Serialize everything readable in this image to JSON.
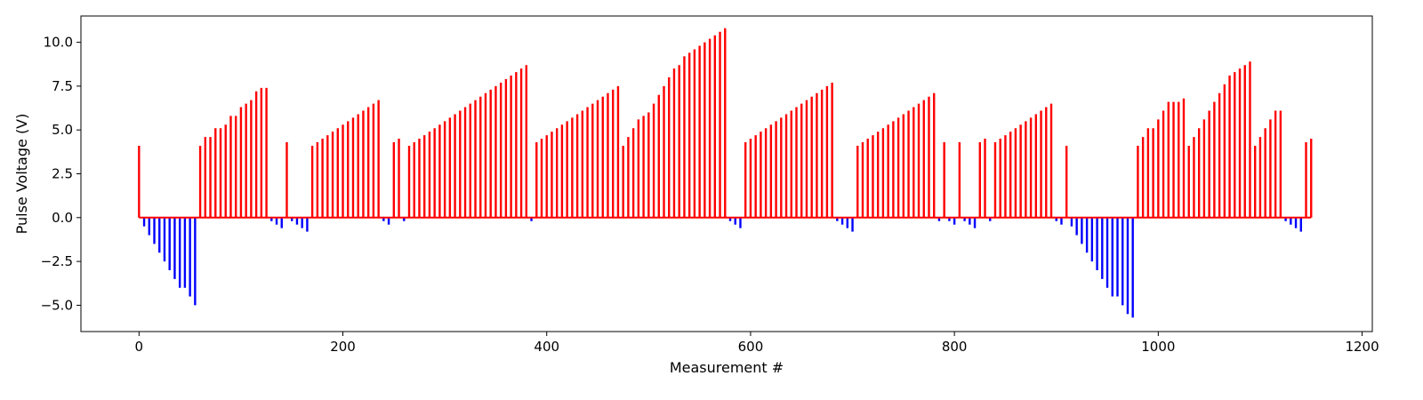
{
  "chart_data": {
    "type": "bar",
    "style": "stem",
    "xlabel": "Measurement #",
    "ylabel": "Pulse Voltage (V)",
    "xlim": [
      -57,
      1210
    ],
    "ylim": [
      -6.5,
      11.5
    ],
    "xticks": [
      0,
      200,
      400,
      600,
      800,
      1000,
      1200
    ],
    "yticks": [
      -5.0,
      -2.5,
      0.0,
      2.5,
      5.0,
      7.5,
      10.0
    ],
    "grid": false,
    "colors": {
      "positive": "#ff0000",
      "negative": "#0000ff"
    },
    "baseline": [
      0,
      1150
    ],
    "points": [
      [
        0,
        4.1
      ],
      [
        5,
        -0.5
      ],
      [
        10,
        -1.0
      ],
      [
        15,
        -1.5
      ],
      [
        20,
        -2.0
      ],
      [
        25,
        -2.5
      ],
      [
        30,
        -3.0
      ],
      [
        35,
        -3.5
      ],
      [
        40,
        -4.0
      ],
      [
        45,
        -4.0
      ],
      [
        50,
        -4.5
      ],
      [
        55,
        -5.0
      ],
      [
        60,
        4.1
      ],
      [
        65,
        4.6
      ],
      [
        70,
        4.6
      ],
      [
        75,
        5.1
      ],
      [
        80,
        5.1
      ],
      [
        85,
        5.3
      ],
      [
        90,
        5.8
      ],
      [
        95,
        5.8
      ],
      [
        100,
        6.3
      ],
      [
        105,
        6.5
      ],
      [
        110,
        6.7
      ],
      [
        115,
        7.2
      ],
      [
        120,
        7.4
      ],
      [
        125,
        7.4
      ],
      [
        130,
        -0.2
      ],
      [
        135,
        -0.4
      ],
      [
        140,
        -0.6
      ],
      [
        145,
        4.3
      ],
      [
        150,
        -0.2
      ],
      [
        155,
        -0.4
      ],
      [
        160,
        -0.6
      ],
      [
        165,
        -0.8
      ],
      [
        170,
        4.1
      ],
      [
        175,
        4.3
      ],
      [
        180,
        4.5
      ],
      [
        185,
        4.7
      ],
      [
        190,
        4.9
      ],
      [
        195,
        5.1
      ],
      [
        200,
        5.3
      ],
      [
        205,
        5.5
      ],
      [
        210,
        5.7
      ],
      [
        215,
        5.9
      ],
      [
        220,
        6.1
      ],
      [
        225,
        6.3
      ],
      [
        230,
        6.5
      ],
      [
        235,
        6.7
      ],
      [
        240,
        -0.2
      ],
      [
        245,
        -0.4
      ],
      [
        250,
        4.3
      ],
      [
        255,
        4.5
      ],
      [
        260,
        -0.2
      ],
      [
        265,
        4.1
      ],
      [
        270,
        4.3
      ],
      [
        275,
        4.5
      ],
      [
        280,
        4.7
      ],
      [
        285,
        4.9
      ],
      [
        290,
        5.1
      ],
      [
        295,
        5.3
      ],
      [
        300,
        5.5
      ],
      [
        305,
        5.7
      ],
      [
        310,
        5.9
      ],
      [
        315,
        6.1
      ],
      [
        320,
        6.3
      ],
      [
        325,
        6.5
      ],
      [
        330,
        6.7
      ],
      [
        335,
        6.9
      ],
      [
        340,
        7.1
      ],
      [
        345,
        7.3
      ],
      [
        350,
        7.5
      ],
      [
        355,
        7.7
      ],
      [
        360,
        7.9
      ],
      [
        365,
        8.1
      ],
      [
        370,
        8.3
      ],
      [
        375,
        8.5
      ],
      [
        380,
        8.7
      ],
      [
        385,
        -0.2
      ],
      [
        390,
        4.3
      ],
      [
        395,
        4.5
      ],
      [
        400,
        4.7
      ],
      [
        405,
        4.9
      ],
      [
        410,
        5.1
      ],
      [
        415,
        5.3
      ],
      [
        420,
        5.5
      ],
      [
        425,
        5.7
      ],
      [
        430,
        5.9
      ],
      [
        435,
        6.1
      ],
      [
        440,
        6.3
      ],
      [
        445,
        6.5
      ],
      [
        450,
        6.7
      ],
      [
        455,
        6.9
      ],
      [
        460,
        7.1
      ],
      [
        465,
        7.3
      ],
      [
        470,
        7.5
      ],
      [
        475,
        4.1
      ],
      [
        480,
        4.6
      ],
      [
        485,
        5.1
      ],
      [
        490,
        5.6
      ],
      [
        495,
        5.8
      ],
      [
        500,
        6.0
      ],
      [
        505,
        6.5
      ],
      [
        510,
        7.0
      ],
      [
        515,
        7.5
      ],
      [
        520,
        8.0
      ],
      [
        525,
        8.5
      ],
      [
        530,
        8.7
      ],
      [
        535,
        9.2
      ],
      [
        540,
        9.4
      ],
      [
        545,
        9.6
      ],
      [
        550,
        9.8
      ],
      [
        555,
        10.0
      ],
      [
        560,
        10.2
      ],
      [
        565,
        10.4
      ],
      [
        570,
        10.6
      ],
      [
        575,
        10.8
      ],
      [
        580,
        -0.2
      ],
      [
        585,
        -0.4
      ],
      [
        590,
        -0.6
      ],
      [
        595,
        4.3
      ],
      [
        600,
        4.5
      ],
      [
        605,
        4.7
      ],
      [
        610,
        4.9
      ],
      [
        615,
        5.1
      ],
      [
        620,
        5.3
      ],
      [
        625,
        5.5
      ],
      [
        630,
        5.7
      ],
      [
        635,
        5.9
      ],
      [
        640,
        6.1
      ],
      [
        645,
        6.3
      ],
      [
        650,
        6.5
      ],
      [
        655,
        6.7
      ],
      [
        660,
        6.9
      ],
      [
        665,
        7.1
      ],
      [
        670,
        7.3
      ],
      [
        675,
        7.5
      ],
      [
        680,
        7.7
      ],
      [
        685,
        -0.2
      ],
      [
        690,
        -0.4
      ],
      [
        695,
        -0.6
      ],
      [
        700,
        -0.8
      ],
      [
        705,
        4.1
      ],
      [
        710,
        4.3
      ],
      [
        715,
        4.5
      ],
      [
        720,
        4.7
      ],
      [
        725,
        4.9
      ],
      [
        730,
        5.1
      ],
      [
        735,
        5.3
      ],
      [
        740,
        5.5
      ],
      [
        745,
        5.7
      ],
      [
        750,
        5.9
      ],
      [
        755,
        6.1
      ],
      [
        760,
        6.3
      ],
      [
        765,
        6.5
      ],
      [
        770,
        6.7
      ],
      [
        775,
        6.9
      ],
      [
        780,
        7.1
      ],
      [
        785,
        -0.2
      ],
      [
        790,
        4.3
      ],
      [
        795,
        -0.2
      ],
      [
        800,
        -0.4
      ],
      [
        805,
        4.3
      ],
      [
        810,
        -0.2
      ],
      [
        815,
        -0.4
      ],
      [
        820,
        -0.6
      ],
      [
        825,
        4.3
      ],
      [
        830,
        4.5
      ],
      [
        835,
        -0.2
      ],
      [
        840,
        4.3
      ],
      [
        845,
        4.5
      ],
      [
        850,
        4.7
      ],
      [
        855,
        4.9
      ],
      [
        860,
        5.1
      ],
      [
        865,
        5.3
      ],
      [
        870,
        5.5
      ],
      [
        875,
        5.7
      ],
      [
        880,
        5.9
      ],
      [
        885,
        6.1
      ],
      [
        890,
        6.3
      ],
      [
        895,
        6.5
      ],
      [
        900,
        -0.2
      ],
      [
        905,
        -0.4
      ],
      [
        910,
        4.1
      ],
      [
        915,
        -0.5
      ],
      [
        920,
        -1.0
      ],
      [
        925,
        -1.5
      ],
      [
        930,
        -2.0
      ],
      [
        935,
        -2.5
      ],
      [
        940,
        -3.0
      ],
      [
        945,
        -3.5
      ],
      [
        950,
        -4.0
      ],
      [
        955,
        -4.5
      ],
      [
        960,
        -4.5
      ],
      [
        965,
        -5.0
      ],
      [
        970,
        -5.5
      ],
      [
        975,
        -5.7
      ],
      [
        980,
        4.1
      ],
      [
        985,
        4.6
      ],
      [
        990,
        5.1
      ],
      [
        995,
        5.1
      ],
      [
        1000,
        5.6
      ],
      [
        1005,
        6.1
      ],
      [
        1010,
        6.6
      ],
      [
        1015,
        6.6
      ],
      [
        1020,
        6.6
      ],
      [
        1025,
        6.8
      ],
      [
        1030,
        4.1
      ],
      [
        1035,
        4.6
      ],
      [
        1040,
        5.1
      ],
      [
        1045,
        5.6
      ],
      [
        1050,
        6.1
      ],
      [
        1055,
        6.6
      ],
      [
        1060,
        7.1
      ],
      [
        1065,
        7.6
      ],
      [
        1070,
        8.1
      ],
      [
        1075,
        8.3
      ],
      [
        1080,
        8.5
      ],
      [
        1085,
        8.7
      ],
      [
        1090,
        8.9
      ],
      [
        1095,
        4.1
      ],
      [
        1100,
        4.6
      ],
      [
        1105,
        5.1
      ],
      [
        1110,
        5.6
      ],
      [
        1115,
        6.1
      ],
      [
        1120,
        6.1
      ],
      [
        1125,
        -0.2
      ],
      [
        1130,
        -0.4
      ],
      [
        1135,
        -0.6
      ],
      [
        1140,
        -0.8
      ],
      [
        1145,
        4.3
      ],
      [
        1150,
        4.5
      ]
    ]
  }
}
